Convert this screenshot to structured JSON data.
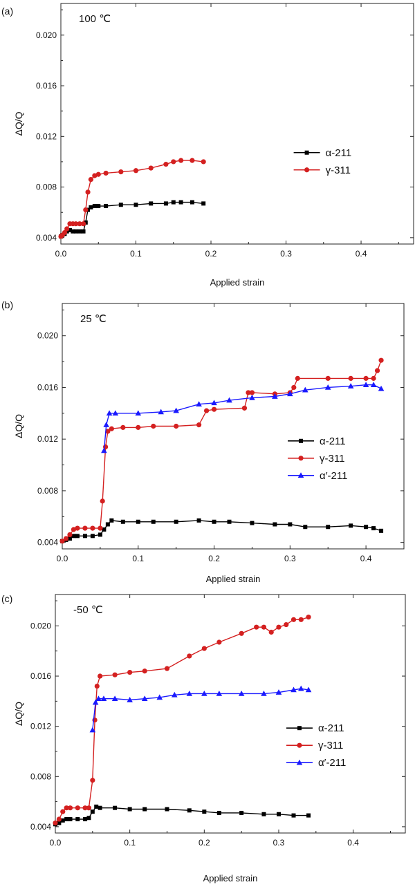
{
  "chart_data": [
    {
      "type": "line",
      "panel_label": "(a)",
      "annotation": "100 ℃",
      "xlabel": "Applied strain",
      "ylabel": "ΔQ/Q",
      "xlim": [
        0,
        0.47
      ],
      "ylim": [
        0.0035,
        0.0225
      ],
      "xticks": [
        "0.0",
        "0.1",
        "0.2",
        "0.3",
        "0.4"
      ],
      "xtick_values": [
        0,
        0.1,
        0.2,
        0.3,
        0.4
      ],
      "yticks": [
        "0.004",
        "0.008",
        "0.012",
        "0.016",
        "0.020"
      ],
      "ytick_values": [
        0.004,
        0.008,
        0.012,
        0.016,
        0.02
      ],
      "legend_position": "right-middle",
      "series": [
        {
          "name": "α-211",
          "color": "#000000",
          "marker": "square",
          "x": [
            0,
            0.002,
            0.005,
            0.008,
            0.012,
            0.016,
            0.02,
            0.025,
            0.03,
            0.033,
            0.036,
            0.04,
            0.045,
            0.05,
            0.06,
            0.08,
            0.1,
            0.12,
            0.14,
            0.15,
            0.16,
            0.175,
            0.19
          ],
          "y": [
            0.0041,
            0.0042,
            0.0043,
            0.0045,
            0.0046,
            0.0045,
            0.0045,
            0.0045,
            0.0045,
            0.0052,
            0.0062,
            0.0064,
            0.0065,
            0.0065,
            0.0065,
            0.0066,
            0.0066,
            0.0067,
            0.0067,
            0.0068,
            0.0068,
            0.0068,
            0.0067
          ]
        },
        {
          "name": "γ-311",
          "color": "#d42020",
          "marker": "circle",
          "x": [
            0,
            0.002,
            0.005,
            0.008,
            0.012,
            0.016,
            0.02,
            0.025,
            0.03,
            0.033,
            0.036,
            0.04,
            0.045,
            0.05,
            0.06,
            0.08,
            0.1,
            0.12,
            0.14,
            0.15,
            0.16,
            0.175,
            0.19
          ],
          "y": [
            0.0041,
            0.0042,
            0.0044,
            0.0047,
            0.0051,
            0.0051,
            0.0051,
            0.0051,
            0.0051,
            0.0062,
            0.0076,
            0.0086,
            0.0089,
            0.009,
            0.0091,
            0.0092,
            0.0093,
            0.0095,
            0.0098,
            0.01,
            0.0101,
            0.0101,
            0.01
          ]
        }
      ]
    },
    {
      "type": "line",
      "panel_label": "(b)",
      "annotation": "25 ℃",
      "xlabel": "Applied strain",
      "ylabel": "ΔQ/Q",
      "xlim": [
        0,
        0.45
      ],
      "ylim": [
        0.0035,
        0.0225
      ],
      "xticks": [
        "0.0",
        "0.1",
        "0.2",
        "0.3",
        "0.4"
      ],
      "xtick_values": [
        0,
        0.1,
        0.2,
        0.3,
        0.4
      ],
      "yticks": [
        "0.004",
        "0.008",
        "0.012",
        "0.016",
        "0.020"
      ],
      "ytick_values": [
        0.004,
        0.008,
        0.012,
        0.016,
        0.02
      ],
      "legend_position": "right-middle",
      "series": [
        {
          "name": "α-211",
          "color": "#000000",
          "marker": "square",
          "x": [
            0,
            0.005,
            0.01,
            0.015,
            0.02,
            0.03,
            0.04,
            0.05,
            0.055,
            0.06,
            0.065,
            0.08,
            0.1,
            0.12,
            0.15,
            0.18,
            0.2,
            0.22,
            0.25,
            0.28,
            0.3,
            0.32,
            0.35,
            0.38,
            0.4,
            0.41,
            0.42
          ],
          "y": [
            0.0041,
            0.0042,
            0.0043,
            0.0045,
            0.0045,
            0.0045,
            0.0045,
            0.0046,
            0.005,
            0.0054,
            0.0057,
            0.0056,
            0.0056,
            0.0056,
            0.0056,
            0.0057,
            0.0056,
            0.0056,
            0.0055,
            0.0054,
            0.0054,
            0.0052,
            0.0052,
            0.0053,
            0.0052,
            0.0051,
            0.0049
          ]
        },
        {
          "name": "γ-311",
          "color": "#d42020",
          "marker": "circle",
          "x": [
            0,
            0.005,
            0.01,
            0.015,
            0.02,
            0.03,
            0.04,
            0.05,
            0.053,
            0.057,
            0.06,
            0.065,
            0.08,
            0.1,
            0.12,
            0.15,
            0.18,
            0.19,
            0.2,
            0.24,
            0.245,
            0.25,
            0.28,
            0.3,
            0.305,
            0.31,
            0.35,
            0.38,
            0.4,
            0.41,
            0.415,
            0.42
          ],
          "y": [
            0.0041,
            0.0043,
            0.0046,
            0.005,
            0.0051,
            0.0051,
            0.0051,
            0.0051,
            0.0072,
            0.0114,
            0.0126,
            0.0128,
            0.0129,
            0.0129,
            0.013,
            0.013,
            0.0131,
            0.0142,
            0.0143,
            0.0144,
            0.0156,
            0.0156,
            0.0155,
            0.0156,
            0.016,
            0.0167,
            0.0167,
            0.0167,
            0.0167,
            0.0167,
            0.0173,
            0.0181
          ]
        },
        {
          "name": "α′-211",
          "color": "#1a1aff",
          "marker": "triangle",
          "x": [
            0.055,
            0.058,
            0.062,
            0.07,
            0.1,
            0.13,
            0.15,
            0.18,
            0.2,
            0.22,
            0.25,
            0.28,
            0.3,
            0.32,
            0.35,
            0.38,
            0.4,
            0.41,
            0.42
          ],
          "y": [
            0.0111,
            0.0131,
            0.014,
            0.014,
            0.014,
            0.0141,
            0.0142,
            0.0147,
            0.0148,
            0.015,
            0.0152,
            0.0153,
            0.0155,
            0.0158,
            0.016,
            0.0161,
            0.0162,
            0.0162,
            0.0159
          ]
        }
      ]
    },
    {
      "type": "line",
      "panel_label": "(c)",
      "annotation": "-50 ℃",
      "xlabel": "Applied strain",
      "ylabel": "ΔQ/Q",
      "xlim": [
        0,
        0.47
      ],
      "ylim": [
        0.0035,
        0.0225
      ],
      "xticks": [
        "0.0",
        "0.1",
        "0.2",
        "0.3",
        "0.4"
      ],
      "xtick_values": [
        0,
        0.1,
        0.2,
        0.3,
        0.4
      ],
      "yticks": [
        "0.004",
        "0.008",
        "0.012",
        "0.016",
        "0.020"
      ],
      "ytick_values": [
        0.004,
        0.008,
        0.012,
        0.016,
        0.02
      ],
      "legend_position": "right-middle",
      "series": [
        {
          "name": "α-211",
          "color": "#000000",
          "marker": "square",
          "x": [
            0,
            0.005,
            0.01,
            0.015,
            0.02,
            0.03,
            0.04,
            0.045,
            0.05,
            0.055,
            0.06,
            0.08,
            0.1,
            0.12,
            0.15,
            0.18,
            0.2,
            0.22,
            0.25,
            0.28,
            0.3,
            0.32,
            0.34
          ],
          "y": [
            0.0042,
            0.0043,
            0.0045,
            0.0046,
            0.0046,
            0.0046,
            0.0046,
            0.0047,
            0.0052,
            0.0056,
            0.0055,
            0.0055,
            0.0054,
            0.0054,
            0.0054,
            0.0053,
            0.0052,
            0.0051,
            0.0051,
            0.005,
            0.005,
            0.0049,
            0.0049
          ]
        },
        {
          "name": "γ-311",
          "color": "#d42020",
          "marker": "circle",
          "x": [
            0,
            0.005,
            0.01,
            0.015,
            0.02,
            0.03,
            0.04,
            0.045,
            0.05,
            0.053,
            0.056,
            0.06,
            0.08,
            0.1,
            0.12,
            0.15,
            0.18,
            0.2,
            0.22,
            0.25,
            0.27,
            0.28,
            0.29,
            0.3,
            0.31,
            0.32,
            0.33,
            0.34
          ],
          "y": [
            0.0043,
            0.0046,
            0.0052,
            0.0055,
            0.0055,
            0.0055,
            0.0055,
            0.0055,
            0.0077,
            0.0125,
            0.0152,
            0.016,
            0.0161,
            0.0163,
            0.0164,
            0.0166,
            0.0176,
            0.0182,
            0.0187,
            0.0194,
            0.0199,
            0.0199,
            0.0195,
            0.0199,
            0.0201,
            0.0205,
            0.0205,
            0.0207
          ]
        },
        {
          "name": "α′-211",
          "color": "#1a1aff",
          "marker": "triangle",
          "x": [
            0.05,
            0.054,
            0.058,
            0.065,
            0.08,
            0.1,
            0.12,
            0.14,
            0.16,
            0.18,
            0.2,
            0.22,
            0.25,
            0.28,
            0.3,
            0.32,
            0.33,
            0.34
          ],
          "y": [
            0.0117,
            0.0139,
            0.0142,
            0.0142,
            0.0142,
            0.0141,
            0.0142,
            0.0143,
            0.0145,
            0.0146,
            0.0146,
            0.0146,
            0.0146,
            0.0146,
            0.0147,
            0.0149,
            0.015,
            0.0149
          ]
        }
      ]
    }
  ]
}
